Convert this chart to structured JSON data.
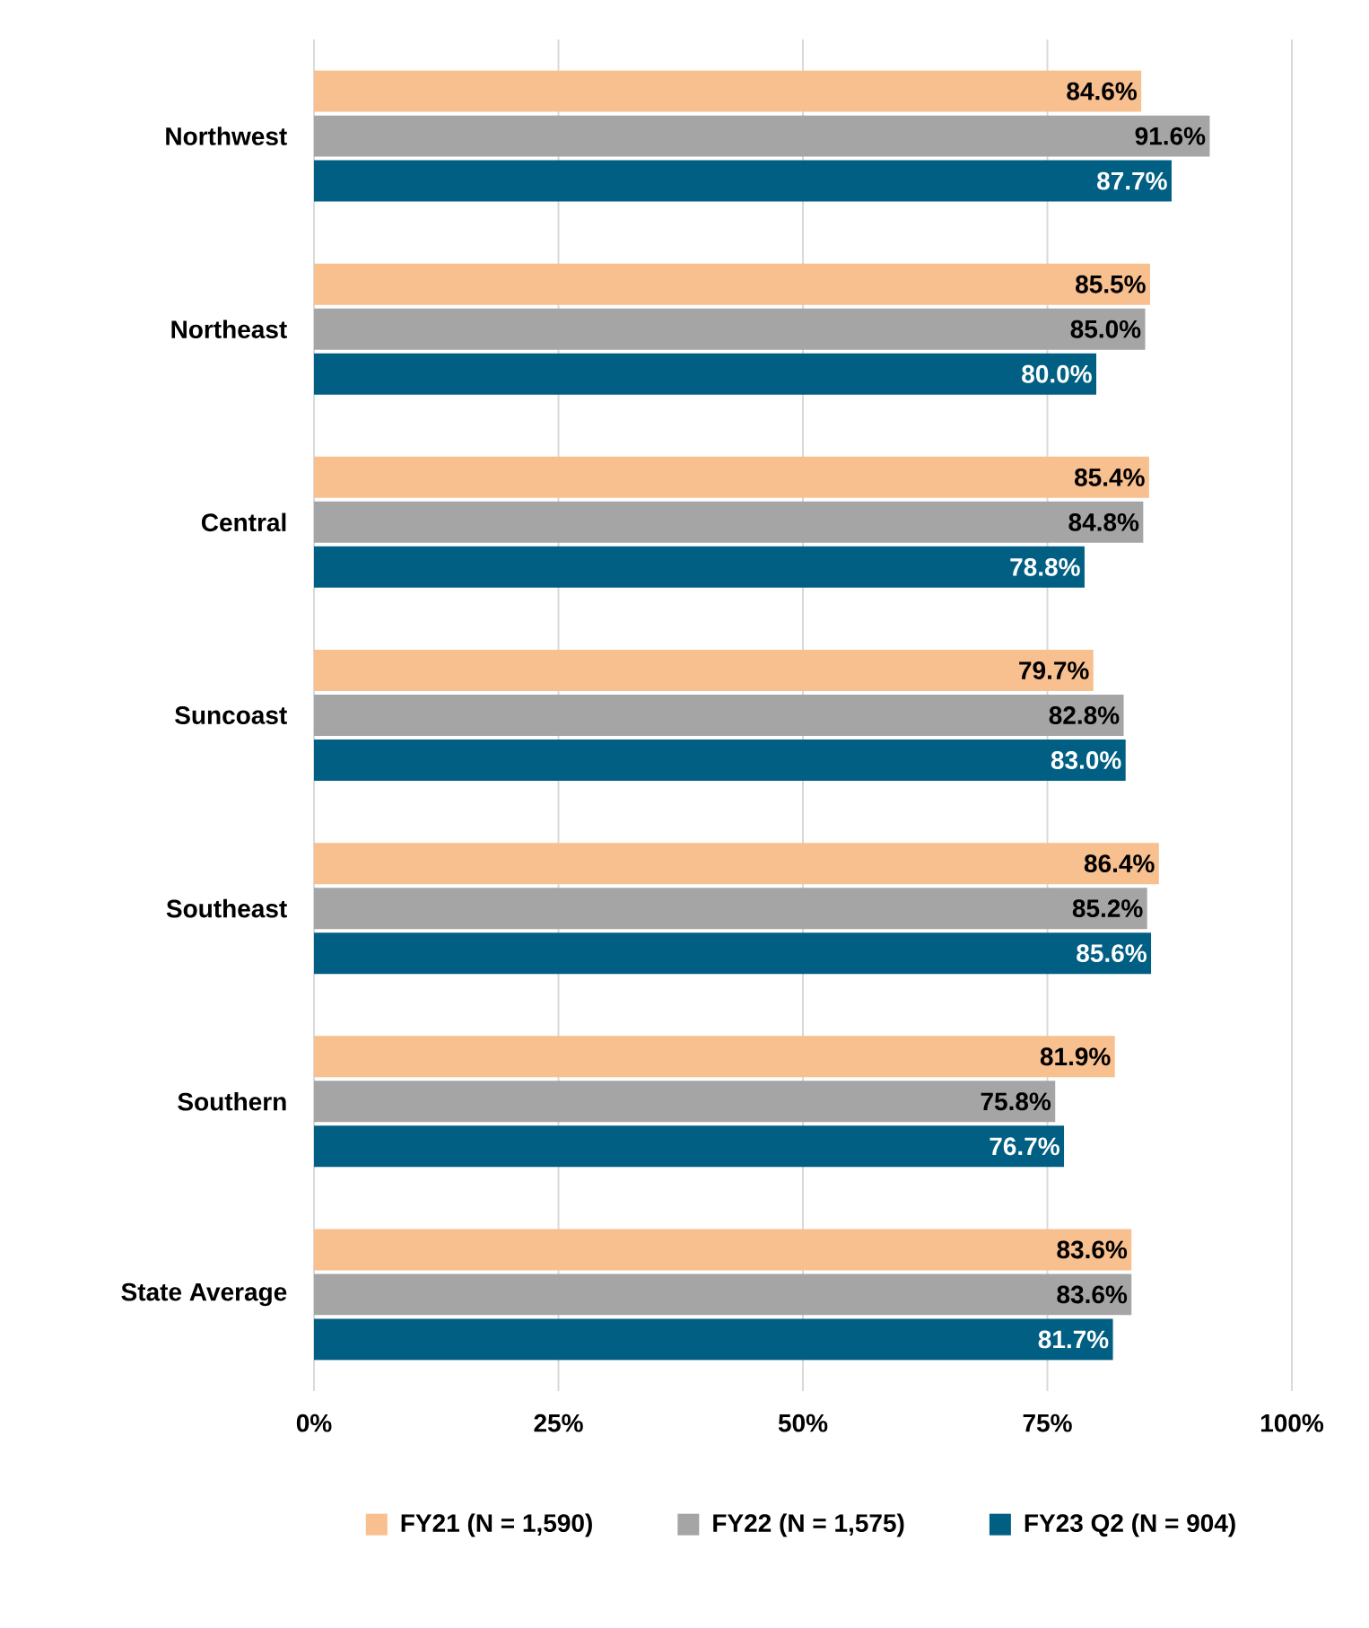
{
  "chart_data": {
    "type": "bar",
    "orientation": "horizontal",
    "categories": [
      "Northwest",
      "Northeast",
      "Central",
      "Suncoast",
      "Southeast",
      "Southern",
      "State Average"
    ],
    "series": [
      {
        "name": "FY21 (N = 1,590)",
        "color": "#f8bf8f",
        "values": [
          84.6,
          85.5,
          85.4,
          79.7,
          86.4,
          81.9,
          83.6
        ],
        "value_labels": [
          "84.6%",
          "85.5%",
          "85.4%",
          "79.7%",
          "86.4%",
          "81.9%",
          "83.6%"
        ]
      },
      {
        "name": "FY22 (N = 1,575)",
        "color": "#a5a5a5",
        "values": [
          91.6,
          85.0,
          84.8,
          82.8,
          85.2,
          75.8,
          83.6
        ],
        "value_labels": [
          "91.6%",
          "85.0%",
          "84.8%",
          "82.8%",
          "85.2%",
          "75.8%",
          "83.6%"
        ]
      },
      {
        "name": "FY23 Q2 (N = 904)",
        "color": "#005f82",
        "values": [
          87.7,
          80.0,
          78.8,
          83.0,
          85.6,
          76.7,
          81.7
        ],
        "value_labels": [
          "87.7%",
          "80.0%",
          "78.8%",
          "83.0%",
          "85.6%",
          "76.7%",
          "81.7%"
        ]
      }
    ],
    "xlim": [
      0,
      100
    ],
    "xticks": [
      {
        "value": 0,
        "label": "0%"
      },
      {
        "value": 25,
        "label": "25%"
      },
      {
        "value": 50,
        "label": "50%"
      },
      {
        "value": 75,
        "label": "75%"
      },
      {
        "value": 100,
        "label": "100%"
      }
    ],
    "grid": "x",
    "legend": "bottom"
  }
}
